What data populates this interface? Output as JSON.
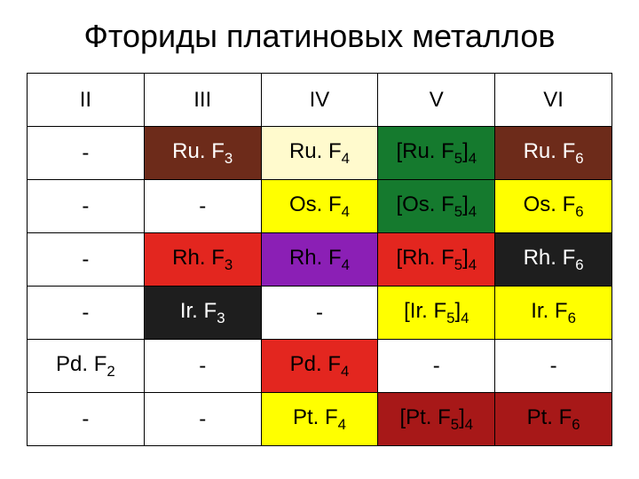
{
  "title": "Фториды платиновых металлов",
  "columns": [
    "II",
    "III",
    "IV",
    "V",
    "VI"
  ],
  "rows": [
    [
      {
        "base": "-",
        "sub": "",
        "bg": "#ffffff"
      },
      {
        "base": "Ru. F",
        "sub": "3",
        "bg": "#6d2b1a",
        "fg": "#ffffff"
      },
      {
        "base": "Ru. F",
        "sub": "4",
        "bg": "#fffacd"
      },
      {
        "base": "[Ru. F",
        "sub": "5",
        "suffix": "]",
        "sub2": "4",
        "bg": "#157a2e",
        "fg": "#000000"
      },
      {
        "base": "Ru. F",
        "sub": "6",
        "bg": "#6d2b1a",
        "fg": "#ffffff"
      }
    ],
    [
      {
        "base": "-",
        "sub": "",
        "bg": "#ffffff"
      },
      {
        "base": "-",
        "sub": "",
        "bg": "#ffffff"
      },
      {
        "base": "Os. F",
        "sub": "4",
        "bg": "#ffff00"
      },
      {
        "base": "[Os. F",
        "sub": "5",
        "suffix": "]",
        "sub2": "4",
        "bg": "#157a2e",
        "fg": "#000000"
      },
      {
        "base": "Os. F",
        "sub": "6",
        "bg": "#ffff00"
      }
    ],
    [
      {
        "base": "-",
        "sub": "",
        "bg": "#ffffff"
      },
      {
        "base": "Rh. F",
        "sub": "3",
        "bg": "#e3261f",
        "fg": "#000000"
      },
      {
        "base": "Rh. F",
        "sub": "4",
        "bg": "#8b1fb5",
        "fg": "#000000"
      },
      {
        "base": "[Rh. F",
        "sub": "5",
        "suffix": "]",
        "sub2": "4",
        "bg": "#e3261f",
        "fg": "#000000"
      },
      {
        "base": "Rh. F",
        "sub": "6",
        "bg": "#1e1e1e",
        "fg": "#ffffff"
      }
    ],
    [
      {
        "base": "-",
        "sub": "",
        "bg": "#ffffff"
      },
      {
        "base": "Ir. F",
        "sub": "3",
        "bg": "#1e1e1e",
        "fg": "#ffffff"
      },
      {
        "base": "-",
        "sub": "",
        "bg": "#ffffff"
      },
      {
        "base": "[Ir. F",
        "sub": "5",
        "suffix": "]",
        "sub2": "4",
        "bg": "#ffff00"
      },
      {
        "base": "Ir. F",
        "sub": "6",
        "bg": "#ffff00"
      }
    ],
    [
      {
        "base": "Pd. F",
        "sub": "2",
        "bg": "#ffffff"
      },
      {
        "base": "-",
        "sub": "",
        "bg": "#ffffff"
      },
      {
        "base": "Pd. F",
        "sub": "4",
        "bg": "#e3261f",
        "fg": "#000000"
      },
      {
        "base": "-",
        "sub": "",
        "bg": "#ffffff"
      },
      {
        "base": "-",
        "sub": "",
        "bg": "#ffffff"
      }
    ],
    [
      {
        "base": "-",
        "sub": "",
        "bg": "#ffffff"
      },
      {
        "base": "-",
        "sub": "",
        "bg": "#ffffff"
      },
      {
        "base": "Pt. F",
        "sub": "4",
        "bg": "#ffff00"
      },
      {
        "base": "[Pt. F",
        "sub": "5",
        "suffix": "]",
        "sub2": "4",
        "bg": "#a71818",
        "fg": "#000000"
      },
      {
        "base": "Pt. F",
        "sub": "6",
        "bg": "#a71818",
        "fg": "#000000"
      }
    ]
  ]
}
